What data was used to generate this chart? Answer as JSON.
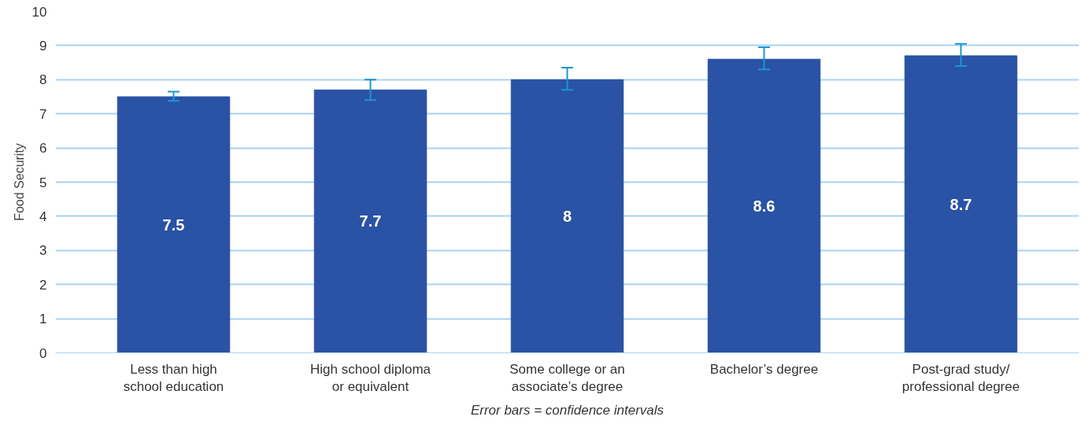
{
  "chart_data": {
    "type": "bar",
    "ylabel": "Food Security",
    "categories": [
      "Less than high\nschool education",
      "High school diploma\nor equivalent",
      "Some college or an\nassociate’s degree",
      "Bachelor’s degree",
      "Post-grad study/\nprofessional degree"
    ],
    "values": [
      7.5,
      7.7,
      8,
      8.6,
      8.7
    ],
    "errors": [
      [
        7.38,
        7.65
      ],
      [
        7.4,
        8.0
      ],
      [
        7.7,
        8.35
      ],
      [
        8.3,
        8.95
      ],
      [
        8.4,
        9.05
      ]
    ],
    "color": "#2a52a5",
    "data_labels": true,
    "ylim": [
      0,
      10
    ],
    "yticks": [
      0,
      1,
      2,
      3,
      4,
      5,
      6,
      7,
      8,
      9,
      10
    ],
    "grid": "y",
    "annotations": [
      "Error bars = confidence intervals"
    ]
  }
}
